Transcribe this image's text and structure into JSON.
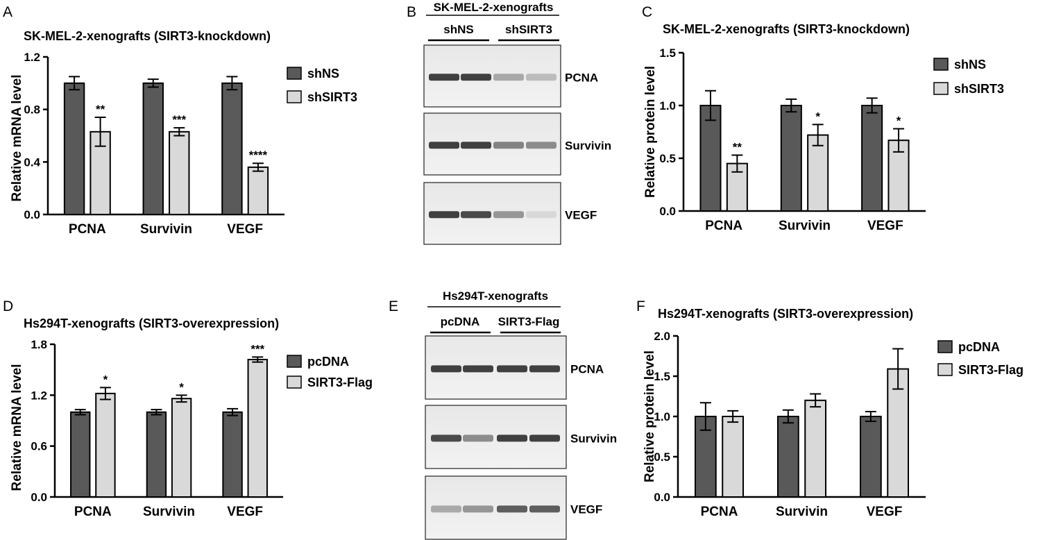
{
  "panels": [
    {
      "letter": "A"
    },
    {
      "letter": "B"
    },
    {
      "letter": "C"
    },
    {
      "letter": "D"
    },
    {
      "letter": "E"
    },
    {
      "letter": "F"
    }
  ],
  "colors": {
    "dark_bar": "#595959",
    "light_bar": "#d9d9d9",
    "stroke": "#000000"
  },
  "chart_data": [
    {
      "panel": "A",
      "type": "bar",
      "title": "SK-MEL-2-xenografts (SIRT3-knockdown)",
      "ylabel": "Relative mRNA level",
      "xlabel": "",
      "ylim": [
        0,
        1.2
      ],
      "yticks": [
        "0.0",
        "0.4",
        "0.8",
        "1.2"
      ],
      "categories": [
        "PCNA",
        "Survivin",
        "VEGF"
      ],
      "legend_position": "top-right",
      "series": [
        {
          "name": "shNS",
          "values": [
            1.0,
            1.0,
            1.0
          ],
          "errors": [
            0.05,
            0.03,
            0.05
          ],
          "significance": [
            "",
            "",
            ""
          ]
        },
        {
          "name": "shSIRT3",
          "values": [
            0.63,
            0.63,
            0.36
          ],
          "errors": [
            0.11,
            0.03,
            0.03
          ],
          "significance": [
            "**",
            "***",
            "****"
          ]
        }
      ]
    },
    {
      "panel": "C",
      "type": "bar",
      "title": "SK-MEL-2-xenografts (SIRT3-knockdown)",
      "ylabel": "Relative protein level",
      "xlabel": "",
      "ylim": [
        0,
        1.5
      ],
      "yticks": [
        "0.0",
        "0.5",
        "1.0",
        "1.5"
      ],
      "categories": [
        "PCNA",
        "Survivin",
        "VEGF"
      ],
      "legend_position": "top-right",
      "series": [
        {
          "name": "shNS",
          "values": [
            1.0,
            1.0,
            1.0
          ],
          "errors": [
            0.14,
            0.06,
            0.07
          ],
          "significance": [
            "",
            "",
            ""
          ]
        },
        {
          "name": "shSIRT3",
          "values": [
            0.45,
            0.72,
            0.67
          ],
          "errors": [
            0.08,
            0.1,
            0.11
          ],
          "significance": [
            "**",
            "*",
            "*"
          ]
        }
      ]
    },
    {
      "panel": "D",
      "type": "bar",
      "title": "Hs294T-xenografts (SIRT3-overexpression)",
      "ylabel": "Relative mRNA level",
      "xlabel": "",
      "ylim": [
        0,
        1.8
      ],
      "yticks": [
        "0.0",
        "0.6",
        "1.2",
        "1.8"
      ],
      "categories": [
        "PCNA",
        "Survivin",
        "VEGF"
      ],
      "legend_position": "top-right",
      "series": [
        {
          "name": "pcDNA",
          "values": [
            1.0,
            1.0,
            1.0
          ],
          "errors": [
            0.03,
            0.03,
            0.04
          ],
          "significance": [
            "",
            "",
            ""
          ]
        },
        {
          "name": "SIRT3-Flag",
          "values": [
            1.22,
            1.16,
            1.62
          ],
          "errors": [
            0.07,
            0.04,
            0.03
          ],
          "significance": [
            "*",
            "*",
            "***"
          ]
        }
      ]
    },
    {
      "panel": "F",
      "type": "bar",
      "title": "Hs294T-xenografts (SIRT3-overexpression)",
      "ylabel": "Relative protein level",
      "xlabel": "",
      "ylim": [
        0,
        2.0
      ],
      "yticks": [
        "0.0",
        "0.5",
        "1.0",
        "1.5",
        "2.0"
      ],
      "categories": [
        "PCNA",
        "Survivin",
        "VEGF"
      ],
      "legend_position": "top-right",
      "series": [
        {
          "name": "pcDNA",
          "values": [
            1.0,
            1.0,
            1.0
          ],
          "errors": [
            0.17,
            0.08,
            0.06
          ],
          "significance": [
            "",
            "",
            ""
          ]
        },
        {
          "name": "SIRT3-Flag",
          "values": [
            1.0,
            1.2,
            1.59
          ],
          "errors": [
            0.07,
            0.08,
            0.25
          ],
          "significance": [
            "",
            "",
            ""
          ]
        }
      ]
    }
  ],
  "blots": [
    {
      "panel": "B",
      "title": "SK-MEL-2-xenografts",
      "groups": [
        "shNS",
        "shSIRT3"
      ],
      "rows": [
        {
          "label": "PCNA",
          "lanes": [
            0.9,
            0.9,
            0.35,
            0.25
          ]
        },
        {
          "label": "Survivin",
          "lanes": [
            0.9,
            0.9,
            0.55,
            0.5
          ]
        },
        {
          "label": "VEGF",
          "lanes": [
            0.9,
            0.85,
            0.45,
            0.1
          ]
        }
      ]
    },
    {
      "panel": "E",
      "title": "Hs294T-xenografts",
      "groups": [
        "pcDNA",
        "SIRT3-Flag"
      ],
      "rows": [
        {
          "label": "PCNA",
          "lanes": [
            0.9,
            0.9,
            0.9,
            0.9
          ]
        },
        {
          "label": "Survivin",
          "lanes": [
            0.85,
            0.5,
            0.9,
            0.9
          ]
        },
        {
          "label": "VEGF",
          "lanes": [
            0.35,
            0.45,
            0.75,
            0.75
          ]
        }
      ]
    }
  ]
}
